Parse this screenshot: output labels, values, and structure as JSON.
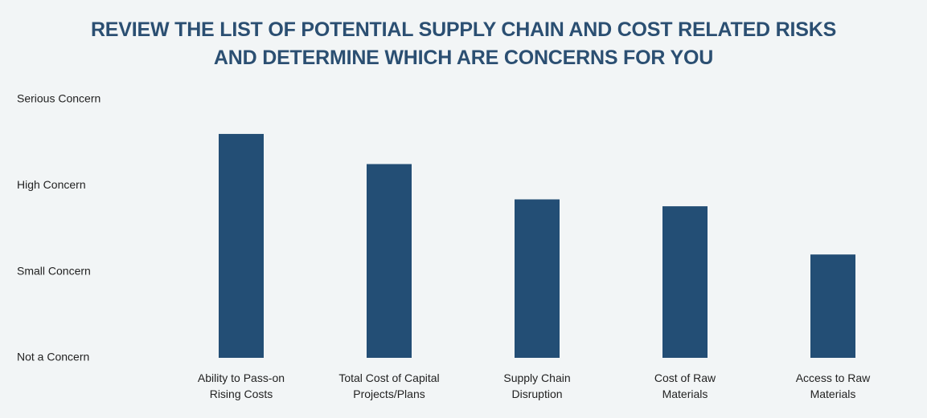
{
  "chart_data": {
    "type": "bar",
    "title_lines": [
      "REVIEW THE LIST OF POTENTIAL SUPPLY CHAIN AND COST RELATED RISKS",
      "AND DETERMINE WHICH ARE CONCERNS FOR YOU"
    ],
    "y_tick_labels": [
      "Serious Concern",
      "High Concern",
      "Small Concern",
      "Not a Concern"
    ],
    "y_tick_values": [
      3,
      2,
      1,
      0
    ],
    "ylim": [
      0,
      3
    ],
    "categories": [
      [
        "Ability to Pass-on",
        "Rising Costs"
      ],
      [
        "Total Cost of Capital",
        "Projects/Plans"
      ],
      [
        "Supply Chain",
        "Disruption"
      ],
      [
        "Cost of Raw",
        "Materials"
      ],
      [
        "Access to Raw",
        "Materials"
      ]
    ],
    "values": [
      2.6,
      2.25,
      1.84,
      1.76,
      1.2
    ],
    "bar_color": "#234e75",
    "title_color": "#2b4f72",
    "grid": false,
    "legend": "none"
  }
}
